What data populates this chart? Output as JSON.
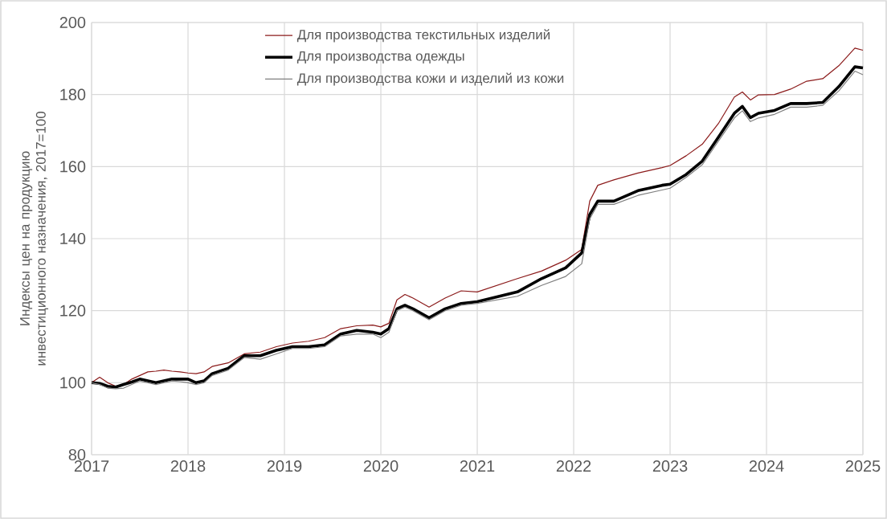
{
  "chart_data": {
    "type": "line",
    "ylabel": "Индексы цен на продукцию инвестиционного назначения, 2017=100",
    "x": [
      "2017-01",
      "2017-02",
      "2017-03",
      "2017-04",
      "2017-05",
      "2017-06",
      "2017-07",
      "2017-08",
      "2017-09",
      "2017-10",
      "2017-11",
      "2017-12",
      "2018-01",
      "2018-02",
      "2018-03",
      "2018-04",
      "2018-06",
      "2018-08",
      "2018-10",
      "2018-12",
      "2019-02",
      "2019-04",
      "2019-06",
      "2019-08",
      "2019-10",
      "2019-12",
      "2020-01",
      "2020-02",
      "2020-03",
      "2020-04",
      "2020-05",
      "2020-07",
      "2020-09",
      "2020-11",
      "2021-01",
      "2021-06",
      "2021-09",
      "2021-12",
      "2022-02",
      "2022-03",
      "2022-04",
      "2022-06",
      "2022-09",
      "2022-12",
      "2023-01",
      "2023-03",
      "2023-05",
      "2023-07",
      "2023-09",
      "2023-10",
      "2023-11",
      "2023-12",
      "2024-02",
      "2024-04",
      "2024-06",
      "2024-08",
      "2024-10",
      "2024-12",
      "2025-01"
    ],
    "series": [
      {
        "name": "Для производства текстильных изделий",
        "color": "#8b1a1a",
        "values": [
          100,
          101.5,
          100,
          99,
          99.5,
          101,
          102,
          103,
          103.2,
          103.5,
          103.2,
          103,
          102.7,
          102.5,
          103,
          104.5,
          105.5,
          108,
          108.5,
          110,
          111,
          111.5,
          112.5,
          115,
          115.8,
          116,
          115.5,
          116.5,
          123,
          124.5,
          123.5,
          121,
          123.5,
          125.5,
          125.2,
          128.9,
          131,
          134,
          137,
          150.4,
          154.8,
          156.3,
          158.2,
          159.7,
          160.3,
          163,
          166.2,
          171.9,
          179.3,
          180.7,
          178.5,
          179.9,
          180,
          181.5,
          183.7,
          184.4,
          188,
          192.9,
          192.3
        ]
      },
      {
        "name": "Для производства одежды",
        "color": "#000000",
        "values": [
          100,
          99.8,
          99,
          98.8,
          99.5,
          100.2,
          101,
          100.5,
          100,
          100.5,
          101,
          101,
          101,
          100,
          100.5,
          102.5,
          104,
          107.5,
          107.5,
          109,
          110,
          110,
          110.5,
          113.5,
          114.5,
          114,
          113.5,
          115,
          120.5,
          121.5,
          120.5,
          118,
          120.5,
          122,
          122.5,
          125.2,
          128.9,
          131.9,
          136,
          146.7,
          150.4,
          150.4,
          153.3,
          154.8,
          155.1,
          157.8,
          161.5,
          168.1,
          174.8,
          176.7,
          173.6,
          174.8,
          175.6,
          177.5,
          177.5,
          177.8,
          182.2,
          187.7,
          187.4
        ]
      },
      {
        "name": "Для производства кожи и изделий из кожи",
        "color": "#808080",
        "values": [
          100,
          99.5,
          98.5,
          98.3,
          98.5,
          99.5,
          100.5,
          100,
          99.5,
          100,
          100.5,
          100.3,
          100,
          99.5,
          100,
          102,
          103.5,
          107,
          106.5,
          108,
          109.5,
          109.5,
          110,
          113,
          113.5,
          113.5,
          112.5,
          114,
          120,
          121,
          120,
          117.5,
          120,
          121.5,
          122,
          124,
          127,
          129.5,
          133,
          145.5,
          149.5,
          149.5,
          152,
          153.5,
          154,
          157,
          160.5,
          167,
          173.5,
          175.5,
          172.5,
          173.5,
          174.5,
          176.5,
          176.5,
          177,
          181,
          186.5,
          185.5
        ]
      }
    ],
    "xlim": [
      "2017-01",
      "2025-01"
    ],
    "xticks": [
      "2017",
      "2018",
      "2019",
      "2020",
      "2021",
      "2022",
      "2023",
      "2024",
      "2025"
    ],
    "ylim": [
      80,
      200
    ],
    "yticks": [
      80,
      100,
      120,
      140,
      160,
      180,
      200
    ],
    "grid": true,
    "legend": "top",
    "marker": "none",
    "line_style": "solid"
  }
}
